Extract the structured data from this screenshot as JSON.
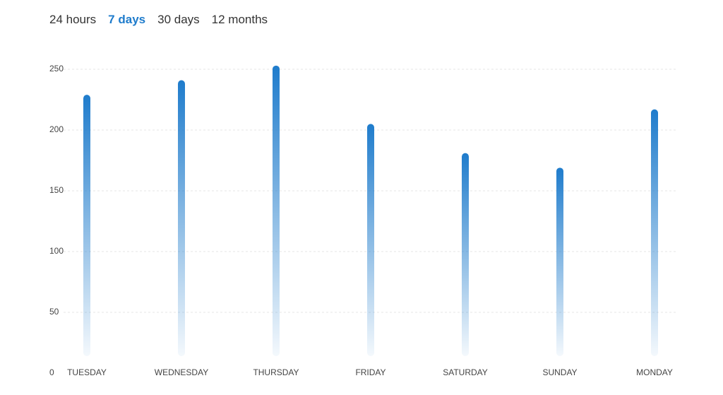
{
  "tabs": {
    "items": [
      "24 hours",
      "7 days",
      "30 days",
      "12 months"
    ],
    "active": 1
  },
  "chart_data": {
    "type": "bar",
    "categories": [
      "TUESDAY",
      "WEDNESDAY",
      "THURSDAY",
      "FRIDAY",
      "SATURDAY",
      "SUNDAY",
      "MONDAY"
    ],
    "values": [
      229,
      241,
      253,
      205,
      181,
      169,
      217
    ],
    "color": "#1f7ccc",
    "ylim": [
      0,
      250
    ],
    "yticks": [
      0,
      50,
      100,
      150,
      200,
      250
    ],
    "grid": true
  }
}
